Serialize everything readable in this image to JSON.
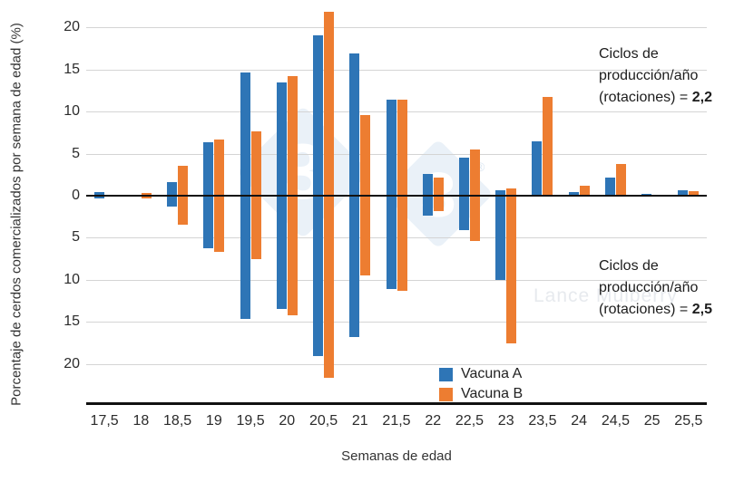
{
  "chart_data": {
    "type": "bar",
    "variant": "mirrored-diverging-histogram",
    "title": "",
    "xlabel": "Semanas de edad",
    "ylabel": "Porcentaje de cerdos comercializados por semana de edad (%)",
    "categories": [
      "17,5",
      "18",
      "18,5",
      "19",
      "19,5",
      "20",
      "20,5",
      "21",
      "21,5",
      "22",
      "22,5",
      "23",
      "23,5",
      "24",
      "24,5",
      "25",
      "25,5"
    ],
    "y_axis": {
      "tick_labels": [
        "20",
        "15",
        "10",
        "5",
        "0",
        "5",
        "10",
        "15",
        "20"
      ],
      "tick_step": 5,
      "half_max": 22,
      "grid": true
    },
    "halves": {
      "top_meaning": "Ciclos de producción/año (rotaciones) = 2,2",
      "bottom_meaning": "Ciclos de producción/año (rotaciones) = 2,5"
    },
    "series": [
      {
        "name": "Vacuna A",
        "color": "#2E75B6",
        "top_values": [
          0.4,
          0,
          1.6,
          6.3,
          14.6,
          13.5,
          19.1,
          16.9,
          11.4,
          2.6,
          4.5,
          0.6,
          6.5,
          0.4,
          2.1,
          0.2,
          0.6
        ],
        "bottom_values": [
          0.3,
          0,
          1.3,
          6.2,
          14.6,
          13.5,
          19.0,
          16.8,
          11.1,
          2.4,
          4.1,
          10.0,
          0,
          0,
          0,
          0,
          0
        ]
      },
      {
        "name": "Vacuna B",
        "color": "#ED7D31",
        "top_values": [
          0,
          0.3,
          3.6,
          6.7,
          7.6,
          14.2,
          21.9,
          9.6,
          11.4,
          2.1,
          5.5,
          0.9,
          11.7,
          1.2,
          3.8,
          0,
          0.5
        ],
        "bottom_values": [
          0,
          0.3,
          3.4,
          6.7,
          7.5,
          14.2,
          21.6,
          9.5,
          11.3,
          1.8,
          5.4,
          17.5,
          0,
          0,
          0,
          0,
          0
        ]
      }
    ],
    "legend_position": "inside-bottom-center"
  },
  "legend": {
    "items": [
      {
        "label": "Vacuna A",
        "color": "#2E75B6"
      },
      {
        "label": "Vacuna B",
        "color": "#ED7D31"
      }
    ]
  },
  "annotations": {
    "top": {
      "line1": "Ciclos de",
      "line2": "producción/año",
      "line3_prefix": "(rotaciones) = ",
      "value": "2,2"
    },
    "bottom": {
      "line1": "Ciclos de",
      "line2": "producción/año",
      "line3_prefix": "(rotaciones) = ",
      "value": "2,5"
    }
  },
  "watermark": {
    "diamond_glyph": "3",
    "registered_mark": "®",
    "text": "Lance Mulberry"
  },
  "colors": {
    "vacuna_a": "#2E75B6",
    "vacuna_b": "#ED7D31",
    "gridline": "#d4d4d4",
    "axis": "#111111"
  }
}
